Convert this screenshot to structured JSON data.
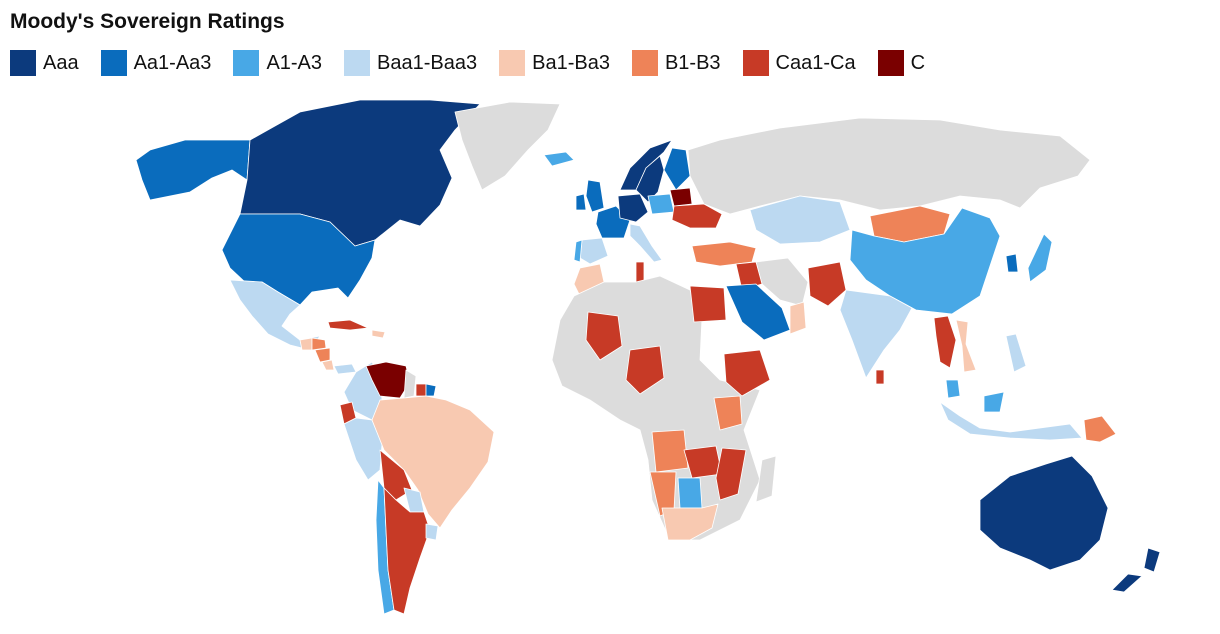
{
  "title": "Moody's Sovereign Ratings",
  "legend": [
    {
      "label": "Aaa",
      "color": "#0c3a7d",
      "key": "aaa"
    },
    {
      "label": "Aa1-Aa3",
      "color": "#0a6cbd",
      "key": "aa"
    },
    {
      "label": "A1-A3",
      "color": "#48a8e6",
      "key": "a"
    },
    {
      "label": "Baa1-Baa3",
      "color": "#bcd9f1",
      "key": "baa"
    },
    {
      "label": "Ba1-Ba3",
      "color": "#f8c9b1",
      "key": "ba"
    },
    {
      "label": "B1-B3",
      "color": "#ee8358",
      "key": "b"
    },
    {
      "label": "Caa1-Ca",
      "color": "#c73a26",
      "key": "caa"
    },
    {
      "label": "C",
      "color": "#7a0000",
      "key": "c"
    }
  ],
  "no_data_color": "#dcdcdc",
  "countries": [
    {
      "name": "Canada",
      "rating": "aaa"
    },
    {
      "name": "United States",
      "rating": "aa"
    },
    {
      "name": "Alaska",
      "rating": "aa"
    },
    {
      "name": "Greenland",
      "rating": "none"
    },
    {
      "name": "Mexico",
      "rating": "baa"
    },
    {
      "name": "Guatemala",
      "rating": "ba"
    },
    {
      "name": "Honduras",
      "rating": "b"
    },
    {
      "name": "Nicaragua",
      "rating": "b"
    },
    {
      "name": "Costa Rica",
      "rating": "ba"
    },
    {
      "name": "Panama",
      "rating": "baa"
    },
    {
      "name": "Cuba",
      "rating": "caa"
    },
    {
      "name": "Dominican Republic",
      "rating": "ba"
    },
    {
      "name": "Colombia",
      "rating": "baa"
    },
    {
      "name": "Venezuela",
      "rating": "c"
    },
    {
      "name": "Guyana",
      "rating": "none"
    },
    {
      "name": "Suriname",
      "rating": "caa"
    },
    {
      "name": "French Guiana",
      "rating": "aa"
    },
    {
      "name": "Ecuador",
      "rating": "caa"
    },
    {
      "name": "Peru",
      "rating": "baa"
    },
    {
      "name": "Brazil",
      "rating": "ba"
    },
    {
      "name": "Bolivia",
      "rating": "caa"
    },
    {
      "name": "Paraguay",
      "rating": "baa"
    },
    {
      "name": "Chile",
      "rating": "a"
    },
    {
      "name": "Argentina",
      "rating": "caa"
    },
    {
      "name": "Uruguay",
      "rating": "baa"
    },
    {
      "name": "Iceland",
      "rating": "a"
    },
    {
      "name": "Norway",
      "rating": "aaa"
    },
    {
      "name": "Sweden",
      "rating": "aaa"
    },
    {
      "name": "Finland",
      "rating": "aa"
    },
    {
      "name": "United Kingdom",
      "rating": "aa"
    },
    {
      "name": "Ireland",
      "rating": "aa"
    },
    {
      "name": "France",
      "rating": "aa"
    },
    {
      "name": "Spain",
      "rating": "baa"
    },
    {
      "name": "Portugal",
      "rating": "a"
    },
    {
      "name": "Germany",
      "rating": "aaa"
    },
    {
      "name": "Poland",
      "rating": "a"
    },
    {
      "name": "Belarus",
      "rating": "c"
    },
    {
      "name": "Ukraine",
      "rating": "caa"
    },
    {
      "name": "Italy",
      "rating": "baa"
    },
    {
      "name": "Turkey",
      "rating": "b"
    },
    {
      "name": "Russia",
      "rating": "none"
    },
    {
      "name": "Kazakhstan",
      "rating": "baa"
    },
    {
      "name": "Mongolia",
      "rating": "b"
    },
    {
      "name": "China",
      "rating": "a"
    },
    {
      "name": "Korea",
      "rating": "aa"
    },
    {
      "name": "Japan",
      "rating": "a"
    },
    {
      "name": "India",
      "rating": "baa"
    },
    {
      "name": "Pakistan",
      "rating": "caa"
    },
    {
      "name": "Iran",
      "rating": "none"
    },
    {
      "name": "Iraq",
      "rating": "caa"
    },
    {
      "name": "Saudi Arabia",
      "rating": "aa"
    },
    {
      "name": "Oman",
      "rating": "ba"
    },
    {
      "name": "Egypt",
      "rating": "caa"
    },
    {
      "name": "Morocco",
      "rating": "ba"
    },
    {
      "name": "Tunisia",
      "rating": "caa"
    },
    {
      "name": "Mali",
      "rating": "caa"
    },
    {
      "name": "Nigeria",
      "rating": "caa"
    },
    {
      "name": "Ethiopia",
      "rating": "caa"
    },
    {
      "name": "Kenya",
      "rating": "b"
    },
    {
      "name": "Angola",
      "rating": "b"
    },
    {
      "name": "Namibia",
      "rating": "b"
    },
    {
      "name": "Botswana",
      "rating": "a"
    },
    {
      "name": "Zambia",
      "rating": "caa"
    },
    {
      "name": "Mozambique",
      "rating": "caa"
    },
    {
      "name": "South Africa",
      "rating": "ba"
    },
    {
      "name": "Madagascar",
      "rating": "none"
    },
    {
      "name": "Myanmar",
      "rating": "caa"
    },
    {
      "name": "Vietnam",
      "rating": "ba"
    },
    {
      "name": "Philippines",
      "rating": "baa"
    },
    {
      "name": "Malaysia",
      "rating": "a"
    },
    {
      "name": "Indonesia",
      "rating": "baa"
    },
    {
      "name": "Papua New Guinea",
      "rating": "b"
    },
    {
      "name": "Sri Lanka",
      "rating": "caa"
    },
    {
      "name": "Australia",
      "rating": "aaa"
    },
    {
      "name": "New Zealand",
      "rating": "aaa"
    }
  ]
}
